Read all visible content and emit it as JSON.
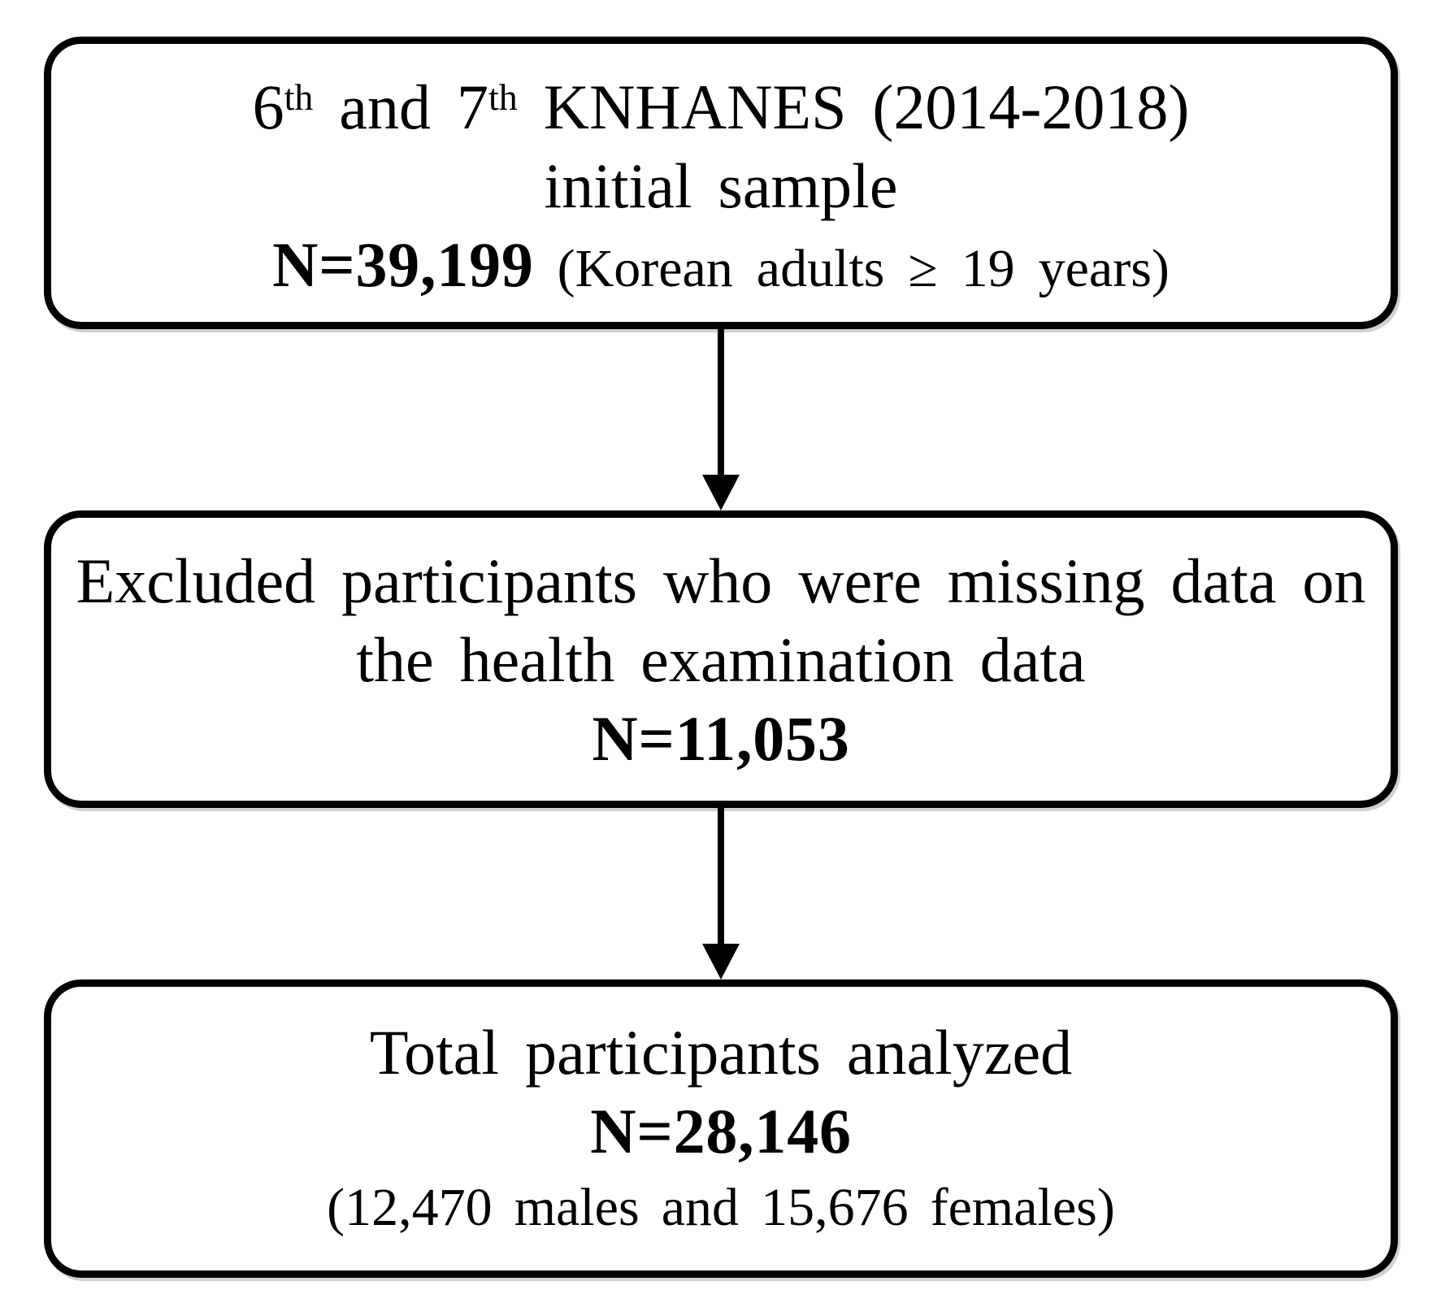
{
  "diagram": {
    "title_semantic": "KNHANES participant selection flowchart",
    "ink_color": "#000000",
    "background_color": "#ffffff",
    "box1": {
      "line1": {
        "t1": "6",
        "sup1": "th",
        "t2": " and 7",
        "sup2": "th",
        "t3": " KNHANES (2014-2018)"
      },
      "line2": "initial sample",
      "line3": {
        "bold": "N=39,199",
        "rest": " (Korean adults ≥ 19 years)"
      }
    },
    "box2": {
      "line1": "Excluded participants who were missing data on",
      "line2": "the health examination data",
      "line3": {
        "bold": "N=11,053"
      }
    },
    "box3": {
      "line1": "Total participants analyzed",
      "line2": {
        "bold": "N=28,146"
      },
      "line3": "(12,470 males and 15,676 females)"
    }
  }
}
